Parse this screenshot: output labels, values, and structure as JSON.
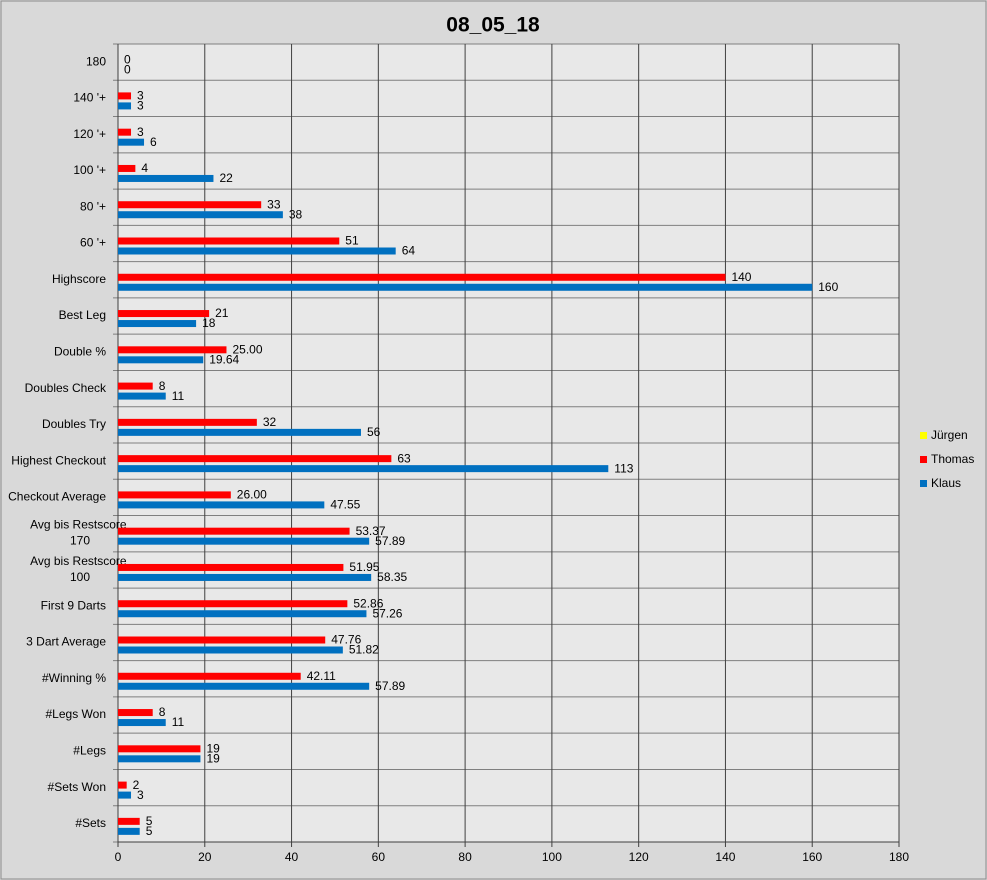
{
  "chart_data": {
    "type": "barh",
    "title": "08_05_18",
    "categories": [
      "180",
      "140 '+",
      "120 '+",
      "100 '+",
      "80 '+",
      "60 '+",
      "Highscore",
      "Best Leg",
      "Double %",
      "Doubles Check",
      "Doubles Try",
      "Highest Checkout",
      "Checkout Average",
      "Avg bis Restscore 170",
      "Avg bis Restscore 100",
      "First 9 Darts",
      "3 Dart Average",
      "#Winning %",
      "#Legs Won",
      "#Legs",
      "#Sets Won",
      "#Sets"
    ],
    "series": [
      {
        "name": "Jürgen",
        "color": "#ffff00",
        "values": [
          null,
          null,
          null,
          null,
          null,
          null,
          null,
          null,
          null,
          null,
          null,
          null,
          null,
          null,
          null,
          null,
          null,
          null,
          null,
          null,
          null,
          null
        ]
      },
      {
        "name": "Thomas",
        "color": "#ff0000",
        "values": [
          0,
          3,
          3,
          4,
          33,
          51,
          140,
          21,
          25,
          8,
          32,
          63,
          26,
          53.37,
          51.95,
          52.86,
          47.76,
          42.11,
          8,
          19,
          2,
          5
        ],
        "value_labels": [
          "0",
          "3",
          "3",
          "4",
          "33",
          "51",
          "140",
          "21",
          "25.00",
          "8",
          "32",
          "63",
          "26.00",
          "53.37",
          "51.95",
          "52.86",
          "47.76",
          "42.11",
          "8",
          "19",
          "2",
          "5"
        ]
      },
      {
        "name": "Klaus",
        "color": "#0070c0",
        "values": [
          0,
          3,
          6,
          22,
          38,
          64,
          160,
          18,
          19.64,
          11,
          56,
          113,
          47.55,
          57.89,
          58.35,
          57.26,
          51.82,
          57.89,
          11,
          19,
          3,
          5
        ],
        "value_labels": [
          "0",
          "3",
          "6",
          "22",
          "38",
          "64",
          "160",
          "18",
          "19.64",
          "11",
          "56",
          "113",
          "47.55",
          "57.89",
          "58.35",
          "57.26",
          "51.82",
          "57.89",
          "11",
          "19",
          "3",
          "5"
        ]
      }
    ],
    "xlim": [
      0,
      180
    ],
    "xticks": [
      0,
      20,
      40,
      60,
      80,
      100,
      120,
      140,
      160,
      180
    ],
    "grid": true,
    "legend": "right"
  }
}
